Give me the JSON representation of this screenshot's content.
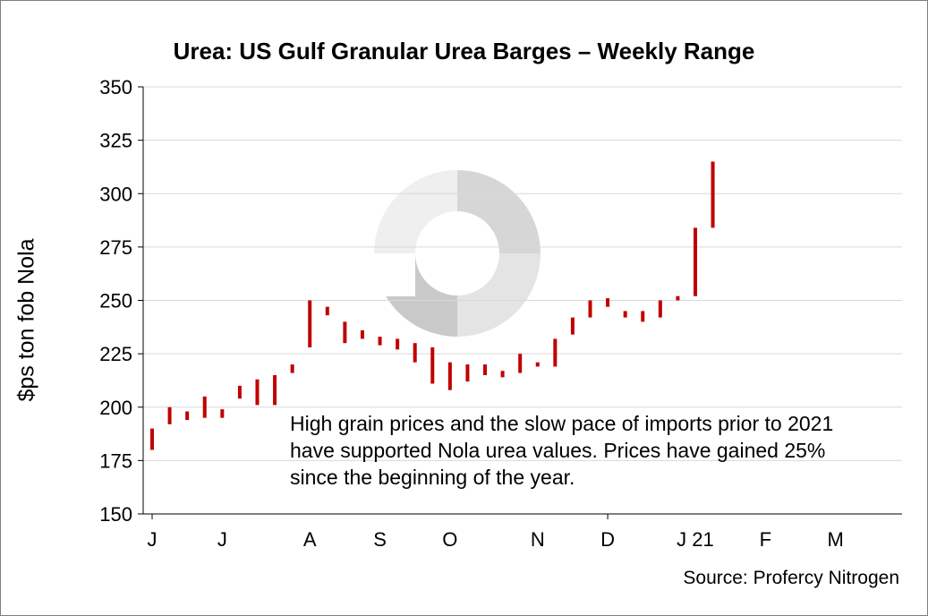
{
  "chart_data": {
    "type": "bar",
    "title": "Urea: US Gulf Granular Urea Barges – Weekly Range",
    "ylabel": "$ps ton fob Nola",
    "xlabel": "",
    "ylim": [
      150,
      350
    ],
    "yticks": [
      150,
      175,
      200,
      225,
      250,
      275,
      300,
      325,
      350
    ],
    "grid": true,
    "x_tick_labels": [
      "J",
      "J",
      "A",
      "S",
      "O",
      "N",
      "D",
      "J 21",
      "F",
      "M"
    ],
    "x_tick_label_weeks": [
      0,
      4,
      9,
      13,
      17,
      22,
      26,
      31,
      35,
      39
    ],
    "x_major_tick_weeks": [
      0,
      26
    ],
    "color": "#c00000",
    "series": [
      {
        "weeks": [
          0,
          1,
          2,
          3,
          4,
          5,
          6,
          7,
          8,
          9,
          10,
          11,
          12,
          13,
          14,
          15,
          16,
          17,
          18,
          19,
          20,
          21,
          22,
          23,
          24,
          25,
          26,
          27,
          28,
          29,
          30,
          31,
          32
        ],
        "low": [
          180,
          192,
          194,
          195,
          195,
          204,
          201,
          201,
          216,
          228,
          243,
          230,
          232,
          229,
          227,
          221,
          211,
          208,
          212,
          215,
          214,
          216,
          219,
          219,
          234,
          242,
          247,
          242,
          240,
          242,
          250,
          252,
          284
        ],
        "high": [
          190,
          200,
          198,
          205,
          199,
          210,
          213,
          215,
          220,
          250,
          247,
          240,
          236,
          233,
          232,
          230,
          228,
          221,
          220,
          220,
          217,
          225,
          221,
          232,
          242,
          250,
          251,
          245,
          245,
          250,
          252,
          284,
          315
        ]
      }
    ],
    "annotation": "High grain prices and the slow pace of imports prior to 2021 have supported Nola urea values. Prices have gained 25% since the beginning of the year."
  },
  "source": "Source: Profercy Nitrogen"
}
